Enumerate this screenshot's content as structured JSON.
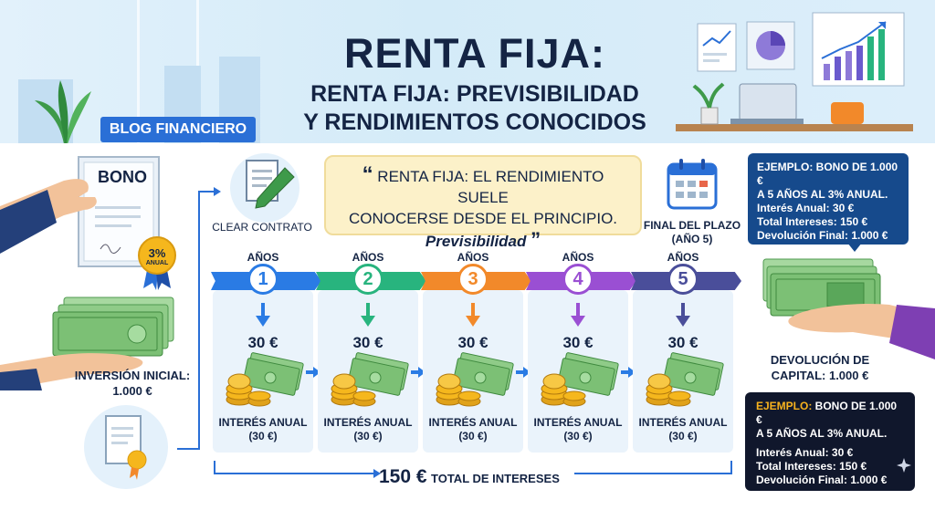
{
  "header": {
    "title": "RENTA FIJA:",
    "subtitle_line1": "RENTA FIJA: PREVISIBILIDAD",
    "subtitle_line2": "Y RENDIMIENTOS CONOCIDOS",
    "tag": "BLOG FINANCIERO"
  },
  "left": {
    "certificate_title": "BONO",
    "rate_badge": "3%",
    "rate_badge_sub": "ANUAL",
    "initial_investment_line1": "INVERSIÓN INICIAL:",
    "initial_investment_line2": "1.000 €"
  },
  "contract": {
    "label": "CLEAR CONTRATO"
  },
  "quote": {
    "line1": "RENTA FIJA: EL RENDIMIENTO SUELE",
    "line2": "CONOCERSE DESDE EL PRINCIPIO.",
    "emphasis": "Previsibilidad",
    "open_mark": "“",
    "close_mark": "”"
  },
  "term_end": {
    "line1": "FINAL DEL PLAZO",
    "line2": "(AÑO 5)"
  },
  "example_top": {
    "line1": "EJEMPLO: BONO DE 1.000 €",
    "line2": "A 5 AÑOS AL 3% ANUAL.",
    "line3": "Interés Anual: 30 €",
    "line4": "Total Intereses: 150 €",
    "line5": "Devolución Final: 1.000 €"
  },
  "return_capital": {
    "line1": "DEVOLUCIÓN DE",
    "line2": "CAPITAL: 1.000 €"
  },
  "example_bottom": {
    "prefix": "EJEMPLO:",
    "line1_rest": " BONO DE 1.000 €",
    "line2": "A 5 AÑOS AL 3% ANUAL.",
    "line3": "Interés Anual: 30 €",
    "line4": "Total Intereses: 150 €",
    "line5": "Devolución Final: 1.000 €"
  },
  "timeline": {
    "years": [
      {
        "label": "AÑOS",
        "number": "1",
        "amount": "30 €",
        "caption1": "INTERÉS ANUAL",
        "caption2": "(30 €)",
        "color": "#2a7be4"
      },
      {
        "label": "AÑOS",
        "number": "2",
        "amount": "30 €",
        "caption1": "INTERÉS ANUAL",
        "caption2": "(30 €)",
        "color": "#28b47e"
      },
      {
        "label": "AÑOS",
        "number": "3",
        "amount": "30 €",
        "caption1": "INTERÉS ANUAL",
        "caption2": "(30 €)",
        "color": "#f2892a"
      },
      {
        "label": "AÑOS",
        "number": "4",
        "amount": "30 €",
        "caption1": "INTERÉS ANUAL",
        "caption2": "(30 €)",
        "color": "#9a4fd3"
      },
      {
        "label": "AÑOS",
        "number": "5",
        "amount": "30 €",
        "caption1": "INTERÉS ANUAL",
        "caption2": "(30 €)",
        "color": "#4a4e9a"
      }
    ],
    "total_amount": "150 €",
    "total_label": "TOTAL DE INTERESES"
  },
  "icons": [
    "certificate-icon",
    "seal-icon",
    "banknotes-icon",
    "contract-pen-icon",
    "calendar-icon",
    "coins-bills-icon",
    "document-seal-icon",
    "sparkle-icon",
    "hand-icon"
  ]
}
